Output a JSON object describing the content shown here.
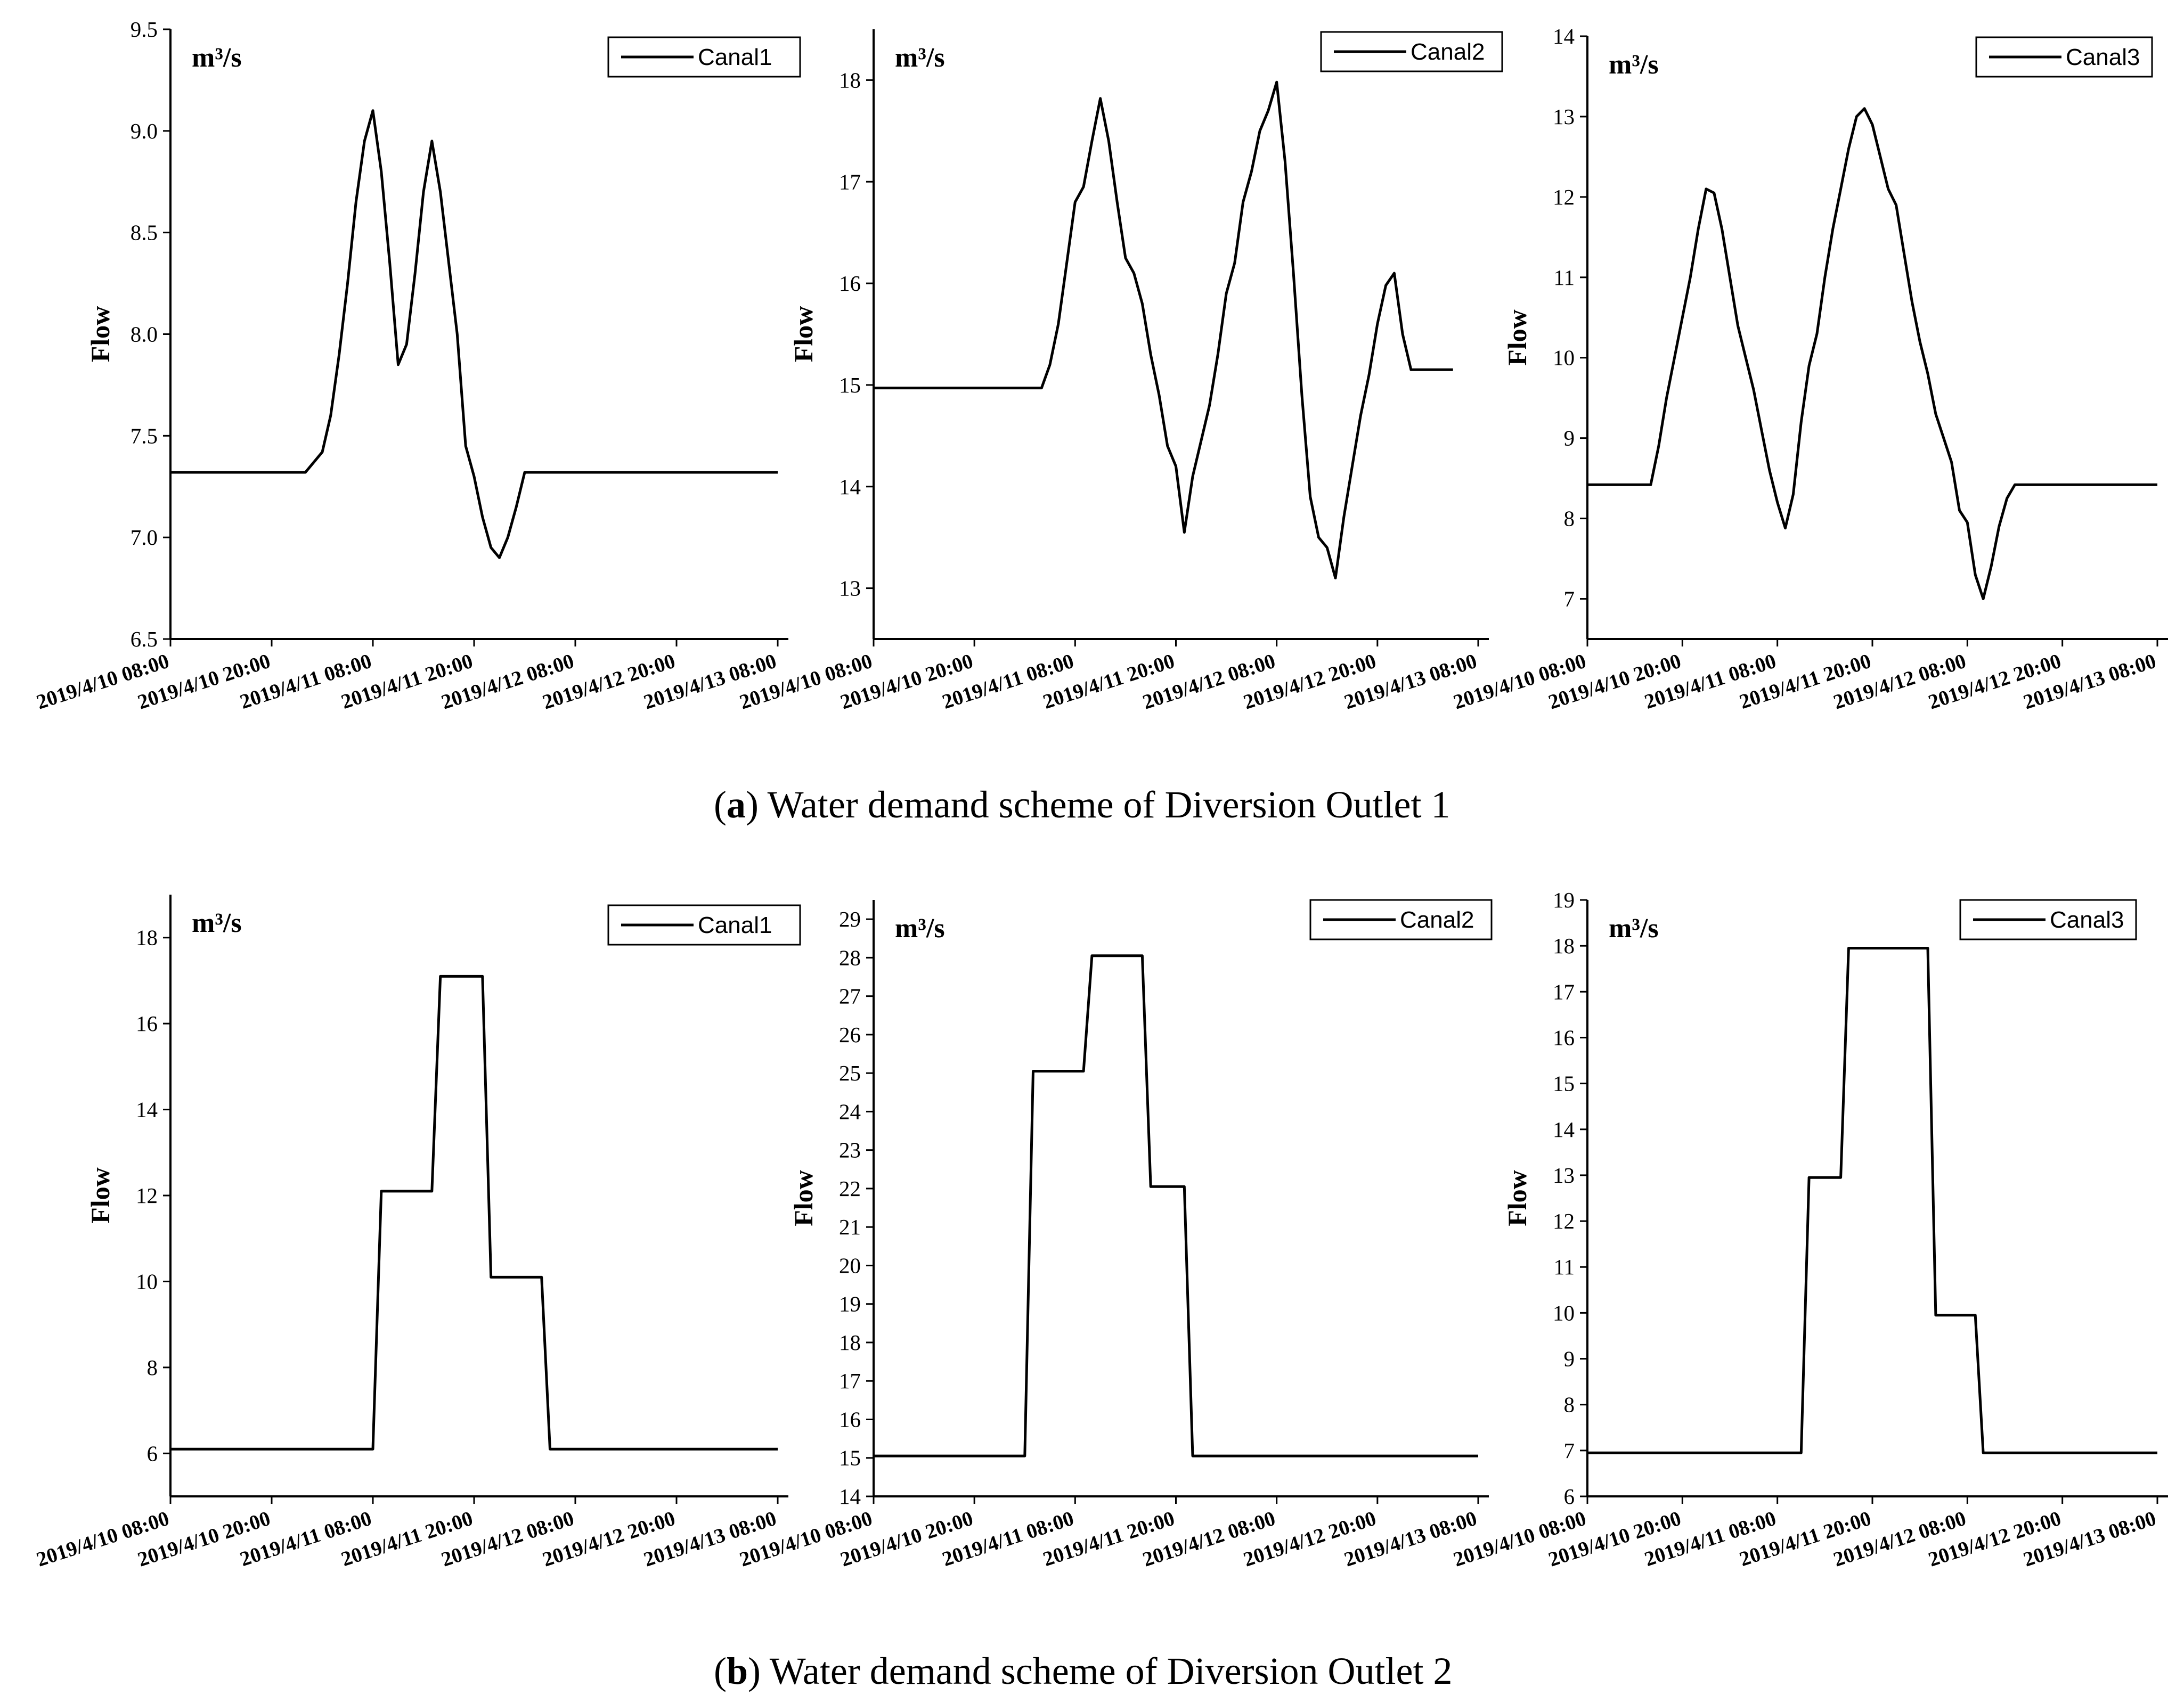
{
  "captions": {
    "a": {
      "letter": "a",
      "text": ") Water demand scheme of Diversion Outlet 1",
      "open": "("
    },
    "b": {
      "letter": "b",
      "text": ") Water demand scheme of Diversion Outlet 2",
      "open": "("
    }
  },
  "chart_data": [
    {
      "id": "a1",
      "type": "line",
      "title": "",
      "legend": "Canal1",
      "ylabel": "Flow",
      "unit": "m³/s",
      "ylim": [
        6.5,
        9.5
      ],
      "yticks": [
        "6.5",
        "7.0",
        "7.5",
        "8.0",
        "8.5",
        "9.0",
        "9.5"
      ],
      "xlim": [
        0,
        72
      ],
      "xticks": [
        "2019/4/10 08:00",
        "2019/4/10 20:00",
        "2019/4/11 08:00",
        "2019/4/11 20:00",
        "2019/4/12 08:00",
        "2019/4/12 20:00",
        "2019/4/13 08:00"
      ],
      "series": [
        {
          "name": "Canal1",
          "x": [
            0,
            16,
            18,
            19,
            20,
            21,
            22,
            23,
            24,
            25,
            26,
            27,
            28,
            29,
            30,
            31,
            32,
            33,
            34,
            35,
            36,
            37,
            38,
            39,
            40,
            41,
            42,
            43,
            44,
            45,
            46,
            47,
            72
          ],
          "y": [
            7.32,
            7.32,
            7.42,
            7.6,
            7.9,
            8.25,
            8.65,
            8.95,
            9.1,
            8.8,
            8.35,
            7.85,
            7.95,
            8.3,
            8.7,
            8.95,
            8.7,
            8.35,
            8.0,
            7.45,
            7.3,
            7.1,
            6.95,
            6.9,
            7.0,
            7.15,
            7.32,
            7.32,
            7.32,
            7.32,
            7.32,
            7.32,
            7.32
          ]
        }
      ]
    },
    {
      "id": "a2",
      "type": "line",
      "title": "",
      "legend": "Canal2",
      "ylabel": "Flow",
      "unit": "m³/s",
      "ylim": [
        12.5,
        18.5
      ],
      "yticks": [
        "13",
        "14",
        "15",
        "16",
        "17",
        "18"
      ],
      "xlim": [
        0,
        72
      ],
      "xticks": [
        "2019/4/10 08:00",
        "2019/4/10 20:00",
        "2019/4/11 08:00",
        "2019/4/11 20:00",
        "2019/4/12 08:00",
        "2019/4/12 20:00",
        "2019/4/13 08:00"
      ],
      "series": [
        {
          "name": "Canal2",
          "x": [
            0,
            20,
            21,
            22,
            23,
            24,
            25,
            26,
            27,
            28,
            29,
            30,
            31,
            32,
            33,
            34,
            35,
            36,
            37,
            38,
            39,
            40,
            41,
            42,
            43,
            44,
            45,
            46,
            47,
            48,
            49,
            50,
            51,
            52,
            53,
            54,
            55,
            56,
            57,
            58,
            59,
            60,
            61,
            62,
            63,
            64,
            65,
            66,
            67,
            68,
            69
          ],
          "y": [
            14.97,
            14.97,
            15.2,
            15.6,
            16.2,
            16.8,
            16.95,
            17.4,
            17.82,
            17.4,
            16.8,
            16.25,
            16.1,
            15.8,
            15.3,
            14.9,
            14.4,
            14.2,
            13.55,
            14.1,
            14.45,
            14.8,
            15.3,
            15.9,
            16.2,
            16.8,
            17.1,
            17.5,
            17.7,
            17.98,
            17.2,
            16.1,
            14.9,
            13.9,
            13.5,
            13.4,
            13.1,
            13.7,
            14.2,
            14.7,
            15.1,
            15.6,
            15.98,
            16.1,
            15.5,
            15.15,
            15.15,
            15.15,
            15.15,
            15.15,
            15.15
          ]
        }
      ]
    },
    {
      "id": "a3",
      "type": "line",
      "title": "",
      "legend": "Canal3",
      "ylabel": "Flow",
      "unit": "m³/s",
      "ylim": [
        6.5,
        14
      ],
      "yticks": [
        "7",
        "8",
        "9",
        "10",
        "11",
        "12",
        "13",
        "14"
      ],
      "xlim": [
        0,
        72
      ],
      "xticks": [
        "2019/4/10 08:00",
        "2019/4/10 20:00",
        "2019/4/11 08:00",
        "2019/4/11 20:00",
        "2019/4/12 08:00",
        "2019/4/12 20:00",
        "2019/4/13 08:00"
      ],
      "series": [
        {
          "name": "Canal3",
          "x": [
            0,
            8,
            9,
            10,
            11,
            12,
            13,
            14,
            15,
            16,
            17,
            18,
            19,
            20,
            21,
            22,
            23,
            24,
            25,
            26,
            27,
            28,
            29,
            30,
            31,
            32,
            33,
            34,
            35,
            36,
            37,
            38,
            39,
            40,
            41,
            42,
            43,
            44,
            45,
            46,
            47,
            48,
            49,
            50,
            51,
            52,
            53,
            54,
            55,
            56,
            57,
            58,
            59,
            60,
            61,
            62,
            63,
            64,
            65,
            66,
            67,
            68,
            69,
            70,
            71,
            72
          ],
          "y": [
            8.42,
            8.42,
            8.9,
            9.5,
            10.0,
            10.5,
            11.0,
            11.6,
            12.1,
            12.05,
            11.6,
            11.0,
            10.4,
            10.0,
            9.6,
            9.1,
            8.6,
            8.2,
            7.88,
            8.3,
            9.2,
            9.9,
            10.3,
            11.0,
            11.6,
            12.1,
            12.6,
            13.0,
            13.1,
            12.9,
            12.5,
            12.1,
            11.9,
            11.3,
            10.7,
            10.2,
            9.8,
            9.3,
            9.0,
            8.7,
            8.1,
            7.95,
            7.3,
            7.0,
            7.4,
            7.9,
            8.25,
            8.42,
            8.42,
            8.42,
            8.42,
            8.42,
            8.42,
            8.42,
            8.42,
            8.42,
            8.42,
            8.42,
            8.42,
            8.42,
            8.42,
            8.42,
            8.42,
            8.42,
            8.42,
            8.42
          ]
        }
      ]
    },
    {
      "id": "b1",
      "type": "line",
      "title": "",
      "legend": "Canal1",
      "ylabel": "Flow",
      "unit": "m³/s",
      "ylim": [
        5,
        19
      ],
      "yticks": [
        "6",
        "8",
        "10",
        "12",
        "14",
        "16",
        "18"
      ],
      "xlim": [
        0,
        72
      ],
      "xticks": [
        "2019/4/10 08:00",
        "2019/4/10 20:00",
        "2019/4/11 08:00",
        "2019/4/11 20:00",
        "2019/4/12 08:00",
        "2019/4/12 20:00",
        "2019/4/13 08:00"
      ],
      "series": [
        {
          "name": "Canal1",
          "x": [
            0,
            24,
            25,
            31,
            32,
            37,
            38,
            44,
            45,
            72
          ],
          "y": [
            6.1,
            6.1,
            12.1,
            12.1,
            17.1,
            17.1,
            10.1,
            10.1,
            6.1,
            6.1
          ]
        }
      ]
    },
    {
      "id": "b2",
      "type": "line",
      "title": "",
      "legend": "Canal2",
      "ylabel": "Flow",
      "unit": "m³/s",
      "ylim": [
        14,
        29.5
      ],
      "yticks": [
        "14",
        "15",
        "16",
        "17",
        "18",
        "19",
        "20",
        "21",
        "22",
        "23",
        "24",
        "25",
        "26",
        "27",
        "28",
        "29"
      ],
      "xlim": [
        0,
        72
      ],
      "xticks": [
        "2019/4/10 08:00",
        "2019/4/10 20:00",
        "2019/4/11 08:00",
        "2019/4/11 20:00",
        "2019/4/12 08:00",
        "2019/4/12 20:00",
        "2019/4/13 08:00"
      ],
      "series": [
        {
          "name": "Canal2",
          "x": [
            0,
            18,
            19,
            25,
            26,
            32,
            33,
            37,
            38,
            72
          ],
          "y": [
            15.05,
            15.05,
            25.05,
            25.05,
            28.05,
            28.05,
            22.05,
            22.05,
            15.05,
            15.05
          ]
        }
      ]
    },
    {
      "id": "b3",
      "type": "line",
      "title": "",
      "legend": "Canal3",
      "ylabel": "Flow",
      "unit": "m³/s",
      "ylim": [
        6,
        19
      ],
      "yticks": [
        "6",
        "7",
        "8",
        "9",
        "10",
        "11",
        "12",
        "13",
        "14",
        "15",
        "16",
        "17",
        "18",
        "19"
      ],
      "xlim": [
        0,
        72
      ],
      "xticks": [
        "2019/4/10 08:00",
        "2019/4/10 20:00",
        "2019/4/11 08:00",
        "2019/4/11 20:00",
        "2019/4/12 08:00",
        "2019/4/12 20:00",
        "2019/4/13 08:00"
      ],
      "series": [
        {
          "name": "Canal3",
          "x": [
            0,
            27,
            28,
            32,
            33,
            43,
            44,
            49,
            50,
            72
          ],
          "y": [
            6.95,
            6.95,
            12.95,
            12.95,
            17.95,
            17.95,
            9.95,
            9.95,
            6.95,
            6.95
          ]
        }
      ]
    }
  ]
}
